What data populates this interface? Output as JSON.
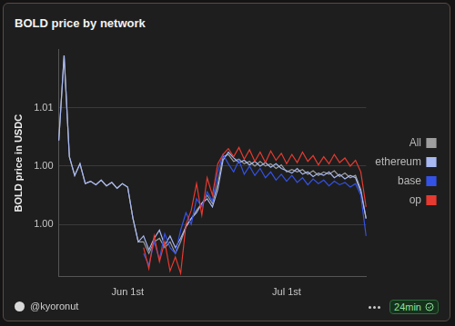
{
  "chart_data": {
    "type": "line",
    "title": "BOLD price by network",
    "ylabel": "BOLD price in USDC",
    "categories": [
      null,
      null,
      null,
      null,
      null,
      null,
      null,
      null,
      null,
      null,
      null,
      null,
      null,
      "Jun 1st",
      null,
      null,
      null,
      null,
      null,
      null,
      null,
      null,
      null,
      null,
      null,
      null,
      null,
      null,
      null,
      null,
      null,
      null,
      null,
      null,
      null,
      null,
      null,
      null,
      null,
      null,
      null,
      null,
      null,
      "Jul 1st",
      null,
      null,
      null,
      null,
      null,
      null,
      null,
      null,
      null,
      null,
      null,
      null,
      null,
      null,
      null
    ],
    "series": [
      {
        "name": "All",
        "color": "#9e9e9e",
        "values": [
          1.0022,
          1.0095,
          1.0008,
          0.9992,
          1.0002,
          0.9985,
          0.9987,
          0.9984,
          0.9988,
          0.9983,
          0.9986,
          0.9981,
          0.9985,
          0.9982,
          0.9955,
          0.9935,
          0.9935,
          0.9925,
          0.9935,
          0.9938,
          0.993,
          0.9935,
          0.9925,
          0.9935,
          0.9948,
          0.9955,
          0.9962,
          0.9968,
          0.9975,
          0.9968,
          0.9985,
          1.0008,
          1.001,
          1.0004,
          1.0006,
          1.0002,
          1.0004,
          1.0,
          1.0004,
          1.0,
          1.0002,
          0.9998,
          1.0001,
          0.9995,
          0.9997,
          0.9995,
          0.9997,
          0.9993,
          0.9996,
          0.9992,
          0.9995,
          0.9993,
          0.9996,
          0.9991,
          0.9994,
          0.999,
          0.9992,
          0.998,
          0.9955
        ]
      },
      {
        "name": "ethereum",
        "color": "#a8b8f2",
        "values": [
          1.0022,
          1.0095,
          1.0008,
          0.9992,
          1.0002,
          0.9985,
          0.9987,
          0.9984,
          0.9988,
          0.9983,
          0.9986,
          0.9981,
          0.9985,
          0.9982,
          0.9955,
          0.9935,
          0.994,
          0.9928,
          0.9938,
          0.9945,
          0.9932,
          0.994,
          0.993,
          0.9938,
          0.9948,
          0.9955,
          0.996,
          0.9968,
          0.9972,
          0.9965,
          0.998,
          1.0005,
          1.0012,
          1.0007,
          1.0003,
          1.0005,
          1.0001,
          1.0004,
          1.0,
          1.0003,
          0.9999,
          1.0002,
          0.9998,
          0.9996,
          0.9994,
          0.9998,
          0.9993,
          0.9995,
          0.9991,
          0.9994,
          0.9992,
          0.9995,
          0.999,
          0.9993,
          0.9989,
          0.9992,
          0.999,
          0.9978,
          0.9955
        ]
      },
      {
        "name": "base",
        "color": "#3452e6",
        "values": [
          null,
          null,
          null,
          null,
          null,
          null,
          null,
          null,
          null,
          null,
          null,
          null,
          null,
          null,
          null,
          null,
          0.9925,
          0.9915,
          0.9935,
          0.992,
          0.9942,
          0.993,
          0.9925,
          0.9945,
          0.996,
          0.995,
          0.9972,
          0.9965,
          0.9978,
          0.997,
          0.9995,
          1.001,
          1.0002,
          0.9995,
          1.0005,
          0.9993,
          1.0,
          0.9992,
          0.9998,
          0.999,
          0.9995,
          0.9988,
          0.9993,
          0.9987,
          0.9992,
          0.9986,
          0.999,
          0.9984,
          0.9989,
          0.9985,
          0.9988,
          0.9983,
          0.9987,
          0.9984,
          0.9986,
          0.9982,
          0.9985,
          0.9975,
          0.994
        ]
      },
      {
        "name": "op",
        "color": "#e63a30",
        "values": [
          null,
          null,
          null,
          null,
          null,
          null,
          null,
          null,
          null,
          null,
          null,
          null,
          null,
          null,
          null,
          null,
          0.993,
          0.9912,
          0.994,
          0.9918,
          0.9935,
          0.991,
          0.9922,
          0.9908,
          0.995,
          0.9962,
          0.9985,
          0.9958,
          0.999,
          0.9975,
          1.0002,
          1.001,
          1.0015,
          1.0008,
          1.0016,
          1.0006,
          1.0014,
          1.0004,
          1.0012,
          1.0003,
          1.0013,
          1.0005,
          1.0011,
          1.0002,
          1.001,
          1.0003,
          1.0012,
          1.0004,
          1.0009,
          1.0001,
          1.0008,
          1.0002,
          1.001,
          1.0003,
          1.0007,
          1.0,
          1.0005,
          0.9995,
          0.9965
        ]
      }
    ],
    "ylim": [
      0.9905,
      1.01
    ],
    "yticks": [
      {
        "value": 0.995,
        "label": "1.00"
      },
      {
        "value": 1.0,
        "label": "1.00"
      },
      {
        "value": 1.005,
        "label": "1.01"
      }
    ],
    "grid": "y",
    "legend": "right"
  },
  "footer": {
    "author": "@kyoronut",
    "updated": "24min"
  }
}
